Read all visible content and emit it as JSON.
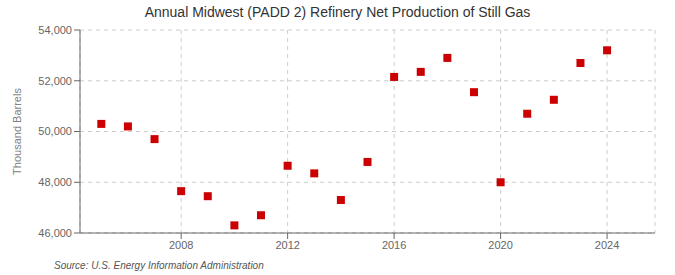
{
  "chart_data": {
    "type": "scatter",
    "title": "Annual Midwest (PADD 2) Refinery Net Production of Still Gas",
    "y_label": "Thousand Barrels",
    "annotations": [
      "Source: U.S. Energy Information Administration"
    ],
    "x": [
      2005,
      2006,
      2007,
      2008,
      2009,
      2010,
      2011,
      2012,
      2013,
      2014,
      2015,
      2016,
      2017,
      2018,
      2019,
      2020,
      2021,
      2022,
      2023,
      2024
    ],
    "values": [
      50300,
      50200,
      49700,
      47650,
      47450,
      46300,
      46700,
      48650,
      48350,
      47300,
      48800,
      52150,
      52350,
      52900,
      51550,
      48000,
      50700,
      51250,
      52700,
      53200
    ],
    "color": "#CC0000",
    "marker": "square",
    "xlim": [
      2004.2,
      2025.8
    ],
    "xticks": [
      2008,
      2012,
      2016,
      2020,
      2024
    ],
    "ylim": [
      46000,
      54000
    ],
    "yticks": [
      {
        "value": 46000,
        "label": "46,000"
      },
      {
        "value": 48000,
        "label": "48,000"
      },
      {
        "value": 50000,
        "label": "50,000"
      },
      {
        "value": 52000,
        "label": "52,000"
      },
      {
        "value": 54000,
        "label": "54,000"
      }
    ],
    "grid": true
  }
}
